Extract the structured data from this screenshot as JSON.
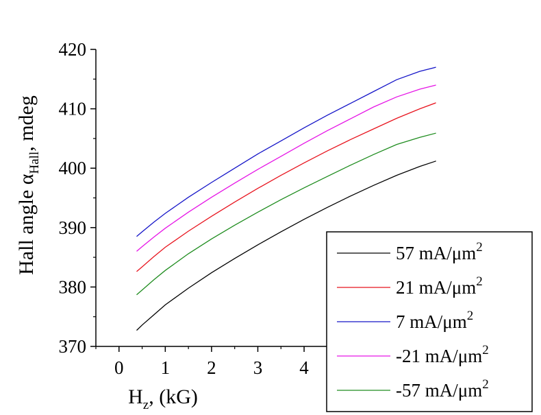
{
  "chart_data": {
    "type": "line",
    "title": "",
    "xlabel": {
      "main": "H",
      "sub": "z",
      "rest": ", (kG)"
    },
    "ylabel": {
      "main": "Hall angle α",
      "sub": "Hall",
      "rest": ", mdeg"
    },
    "xlim": [
      -0.5,
      6.9
    ],
    "ylim": [
      370,
      420
    ],
    "xticks": [
      "0",
      "1",
      "2",
      "3",
      "4"
    ],
    "yticks": [
      "370",
      "380",
      "390",
      "400",
      "410",
      "420"
    ],
    "grid": false,
    "legend_position": "bottom-right",
    "x": [
      0.38,
      0.5,
      0.75,
      1.0,
      1.5,
      2.0,
      2.5,
      3.0,
      3.5,
      4.0,
      4.5,
      5.0,
      5.5,
      6.0,
      6.5,
      6.85
    ],
    "series": [
      {
        "name": "57 mA/μm",
        "unit_power": "2",
        "color": "#000000",
        "values": [
          372.7,
          373.6,
          375.3,
          377.0,
          379.8,
          382.4,
          384.8,
          387.1,
          389.3,
          391.4,
          393.4,
          395.3,
          397.1,
          398.8,
          400.3,
          401.2
        ]
      },
      {
        "name": "21 mA/μm",
        "unit_power": "2",
        "color": "#e8141e",
        "values": [
          382.6,
          383.4,
          385.1,
          386.7,
          389.4,
          391.9,
          394.3,
          396.6,
          398.8,
          400.9,
          402.9,
          404.8,
          406.6,
          408.4,
          410.0,
          411.0
        ]
      },
      {
        "name": "7 mA/μm",
        "unit_power": "2",
        "color": "#1414c8",
        "values": [
          388.5,
          389.3,
          390.9,
          392.4,
          395.1,
          397.6,
          400.0,
          402.4,
          404.6,
          406.8,
          408.9,
          410.9,
          412.9,
          414.9,
          416.3,
          417.0
        ]
      },
      {
        "name": "-21 mA/μm",
        "unit_power": "2",
        "color": "#e614e6",
        "values": [
          386.0,
          386.8,
          388.4,
          389.9,
          392.6,
          395.1,
          397.5,
          399.8,
          402.0,
          404.2,
          406.3,
          408.3,
          410.3,
          412.0,
          413.3,
          414.0
        ]
      },
      {
        "name": "-57 mA/μm",
        "unit_power": "2",
        "color": "#1e8c1e",
        "values": [
          378.7,
          379.5,
          381.2,
          382.8,
          385.6,
          388.1,
          390.4,
          392.6,
          394.7,
          396.7,
          398.6,
          400.5,
          402.3,
          404.0,
          405.2,
          405.9
        ]
      }
    ]
  }
}
